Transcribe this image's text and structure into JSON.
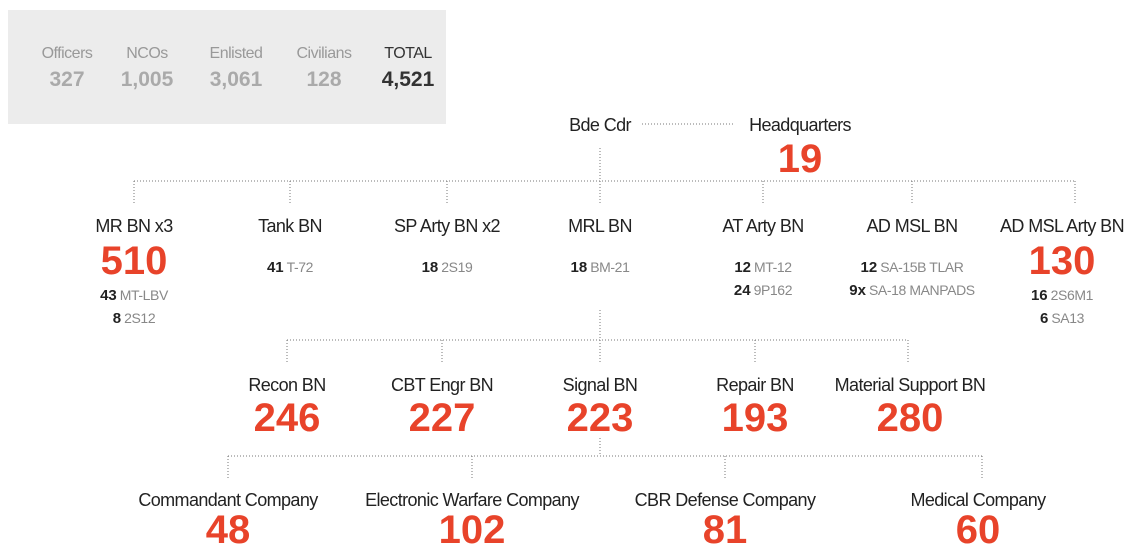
{
  "summary": [
    {
      "label": "Officers",
      "value": "327"
    },
    {
      "label": "NCOs",
      "value": "1,005"
    },
    {
      "label": "Enlisted",
      "value": "3,061"
    },
    {
      "label": "Civilians",
      "value": "128"
    },
    {
      "label": "TOTAL",
      "value": "4,521"
    }
  ],
  "hq": {
    "commander": "Bde Cdr",
    "label": "Headquarters",
    "count": "19"
  },
  "battalions": [
    {
      "name": "MR BN x3",
      "count": "510",
      "equipment": [
        {
          "qty": "43",
          "type": "MT-LBV"
        },
        {
          "qty": "8",
          "type": "2S12"
        }
      ]
    },
    {
      "name": "Tank BN",
      "equipment": [
        {
          "qty": "41",
          "type": "T-72"
        }
      ]
    },
    {
      "name": "SP Arty BN x2",
      "equipment": [
        {
          "qty": "18",
          "type": "2S19"
        }
      ]
    },
    {
      "name": "MRL BN",
      "equipment": [
        {
          "qty": "18",
          "type": "BM-21"
        }
      ]
    },
    {
      "name": "AT Arty BN",
      "equipment": [
        {
          "qty": "12",
          "type": "MT-12"
        },
        {
          "qty": "24",
          "type": "9P162"
        }
      ]
    },
    {
      "name": "AD MSL BN",
      "equipment": [
        {
          "qty": "12",
          "type": "SA-15B TLAR"
        },
        {
          "qty": "9x",
          "type": "SA-18 MANPADS"
        }
      ]
    },
    {
      "name": "AD MSL Arty BN",
      "count": "130",
      "equipment": [
        {
          "qty": "16",
          "type": "2S6M1"
        },
        {
          "qty": "6",
          "type": "SA13"
        }
      ]
    }
  ],
  "support": [
    {
      "name": "Recon BN",
      "count": "246"
    },
    {
      "name": "CBT Engr BN",
      "count": "227"
    },
    {
      "name": "Signal BN",
      "count": "223"
    },
    {
      "name": "Repair BN",
      "count": "193"
    },
    {
      "name": "Material Support BN",
      "count": "280"
    }
  ],
  "companies": [
    {
      "name": "Commandant Company",
      "count": "48"
    },
    {
      "name": "Electronic Warfare Company",
      "count": "102"
    },
    {
      "name": "CBR Defense Company",
      "count": "81"
    },
    {
      "name": "Medical Company",
      "count": "60"
    }
  ]
}
